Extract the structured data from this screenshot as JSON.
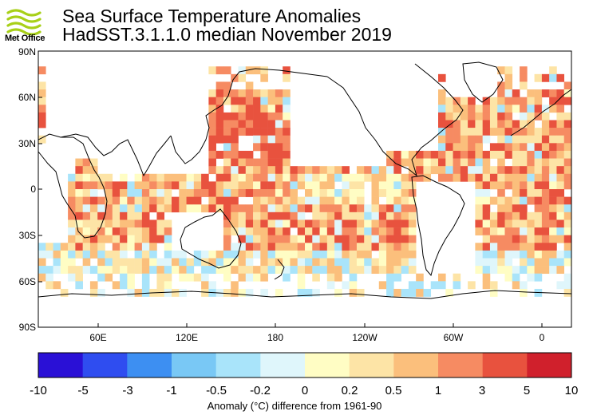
{
  "header": {
    "logo_text": "Met Office",
    "title": "Sea Surface Temperature Anomalies",
    "subtitle": "HadSST.3.1.1.0 median November 2019"
  },
  "map": {
    "lat_labels": [
      "90N",
      "60N",
      "30N",
      "0",
      "30S",
      "60S",
      "90S"
    ],
    "lon_labels": [
      "60E",
      "120E",
      "180",
      "120W",
      "60W",
      "0"
    ],
    "land_color": "#ffffff",
    "ocean_missing_color": "#ffffff"
  },
  "colorbar": {
    "ticks": [
      "-10",
      "-5",
      "-3",
      "-1",
      "-0.5",
      "-0.2",
      "0",
      "0.2",
      "0.5",
      "1",
      "3",
      "5",
      "10"
    ],
    "colors": [
      "#2a10d6",
      "#2f4df0",
      "#3d8ff2",
      "#79c8f5",
      "#a9e4fa",
      "#dff6fb",
      "#fffdc4",
      "#fde4a6",
      "#fbbf7c",
      "#f68b62",
      "#e8523e",
      "#d0202c"
    ],
    "caption": "Anomaly (°C) difference from 1961-90"
  }
}
